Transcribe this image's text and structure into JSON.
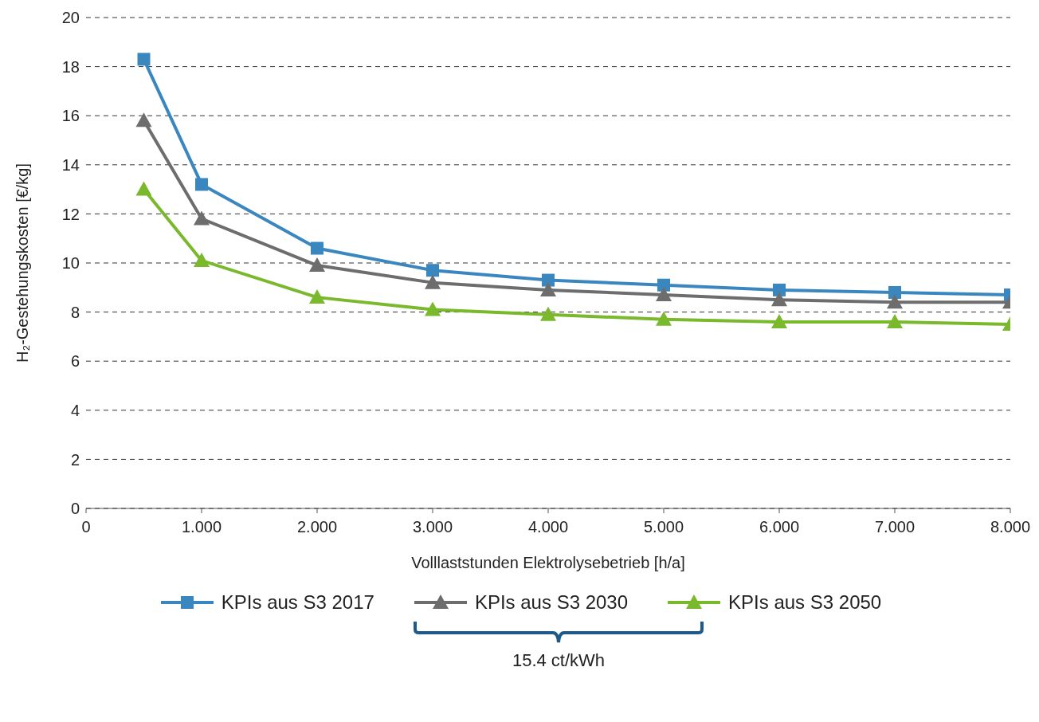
{
  "chart_data": {
    "type": "line",
    "xlabel": "Volllaststunden Elektrolysebetrieb [h/a]",
    "ylabel": "H₂-Gestehungskosten [€/kg]",
    "x": [
      0.5,
      1,
      2,
      3,
      4,
      5,
      6,
      7,
      8
    ],
    "series": [
      {
        "name": "KPIs aus S3 2017",
        "color": "#3a87c0",
        "marker": "square",
        "values": [
          18.3,
          13.2,
          10.6,
          9.7,
          9.3,
          9.1,
          8.9,
          8.8,
          8.7
        ]
      },
      {
        "name": "KPIs aus S3 2030",
        "color": "#6d6d6d",
        "marker": "triangle",
        "values": [
          15.8,
          11.8,
          9.9,
          9.2,
          8.9,
          8.7,
          8.5,
          8.4,
          8.4
        ]
      },
      {
        "name": "KPIs aus S3 2050",
        "color": "#7ab82c",
        "marker": "triangle",
        "values": [
          13.0,
          10.1,
          8.6,
          8.1,
          7.9,
          7.7,
          7.6,
          7.6,
          7.5
        ]
      }
    ],
    "xlim": [
      0,
      8
    ],
    "xticks": [
      0,
      {
        "value": 1,
        "label": "1.000"
      },
      {
        "value": 2,
        "label": "2.000"
      },
      {
        "value": 3,
        "label": "3.000"
      },
      {
        "value": 4,
        "label": "4.000"
      },
      {
        "value": 5,
        "label": "5.000"
      },
      {
        "value": 6,
        "label": "6.000"
      },
      {
        "value": 7,
        "label": "7.000"
      },
      {
        "value": 8,
        "label": "8.000"
      }
    ],
    "ylim": [
      0,
      20
    ],
    "yticks": [
      0,
      2,
      4,
      6,
      8,
      10,
      12,
      14,
      16,
      18,
      20
    ],
    "grid": "y",
    "legend": "bottom",
    "line_style": "solid",
    "annotations": [
      "15.4 ct/kWh"
    ]
  }
}
